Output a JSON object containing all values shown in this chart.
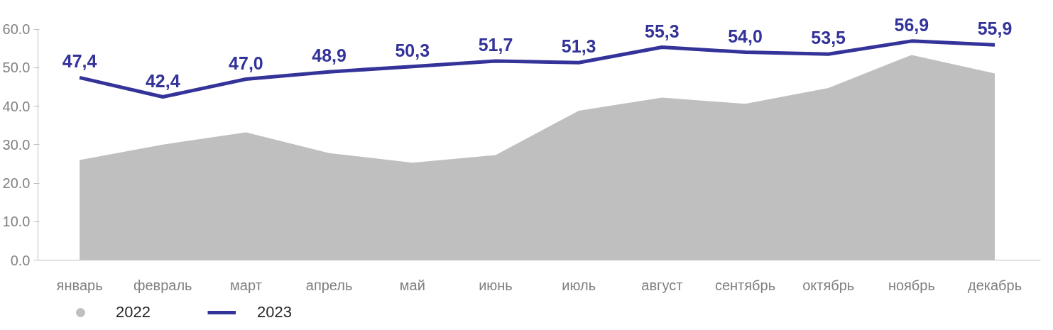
{
  "chart_data": {
    "type": "area",
    "categories": [
      "январь",
      "февраль",
      "март",
      "апрель",
      "май",
      "июнь",
      "июль",
      "август",
      "сентябрь",
      "октябрь",
      "ноябрь",
      "декабрь"
    ],
    "series": [
      {
        "name": "2022",
        "type": "area",
        "color": "#bfbfbf",
        "values": [
          26.0,
          30.0,
          33.2,
          27.8,
          25.3,
          27.3,
          38.8,
          42.2,
          40.6,
          44.7,
          53.3,
          48.5
        ]
      },
      {
        "name": "2023",
        "type": "line",
        "color": "#333399",
        "values": [
          47.4,
          42.4,
          47.0,
          48.9,
          50.3,
          51.7,
          51.3,
          55.3,
          54.0,
          53.5,
          56.9,
          55.9
        ],
        "value_labels": [
          "47,4",
          "42,4",
          "47,0",
          "48,9",
          "50,3",
          "51,7",
          "51,3",
          "55,3",
          "54,0",
          "53,5",
          "56,9",
          "55,9"
        ]
      }
    ],
    "ylim": [
      0,
      60
    ],
    "yticks": [
      {
        "value": 0,
        "label": "0.0"
      },
      {
        "value": 10,
        "label": "10.0"
      },
      {
        "value": 20,
        "label": "20.0"
      },
      {
        "value": 30,
        "label": "30.0"
      },
      {
        "value": 40,
        "label": "40.0"
      },
      {
        "value": 50,
        "label": "50.0"
      },
      {
        "value": 60,
        "label": "60.0"
      }
    ],
    "grid": false,
    "legend": "bottom",
    "marker": "none",
    "line_style": "solid"
  }
}
